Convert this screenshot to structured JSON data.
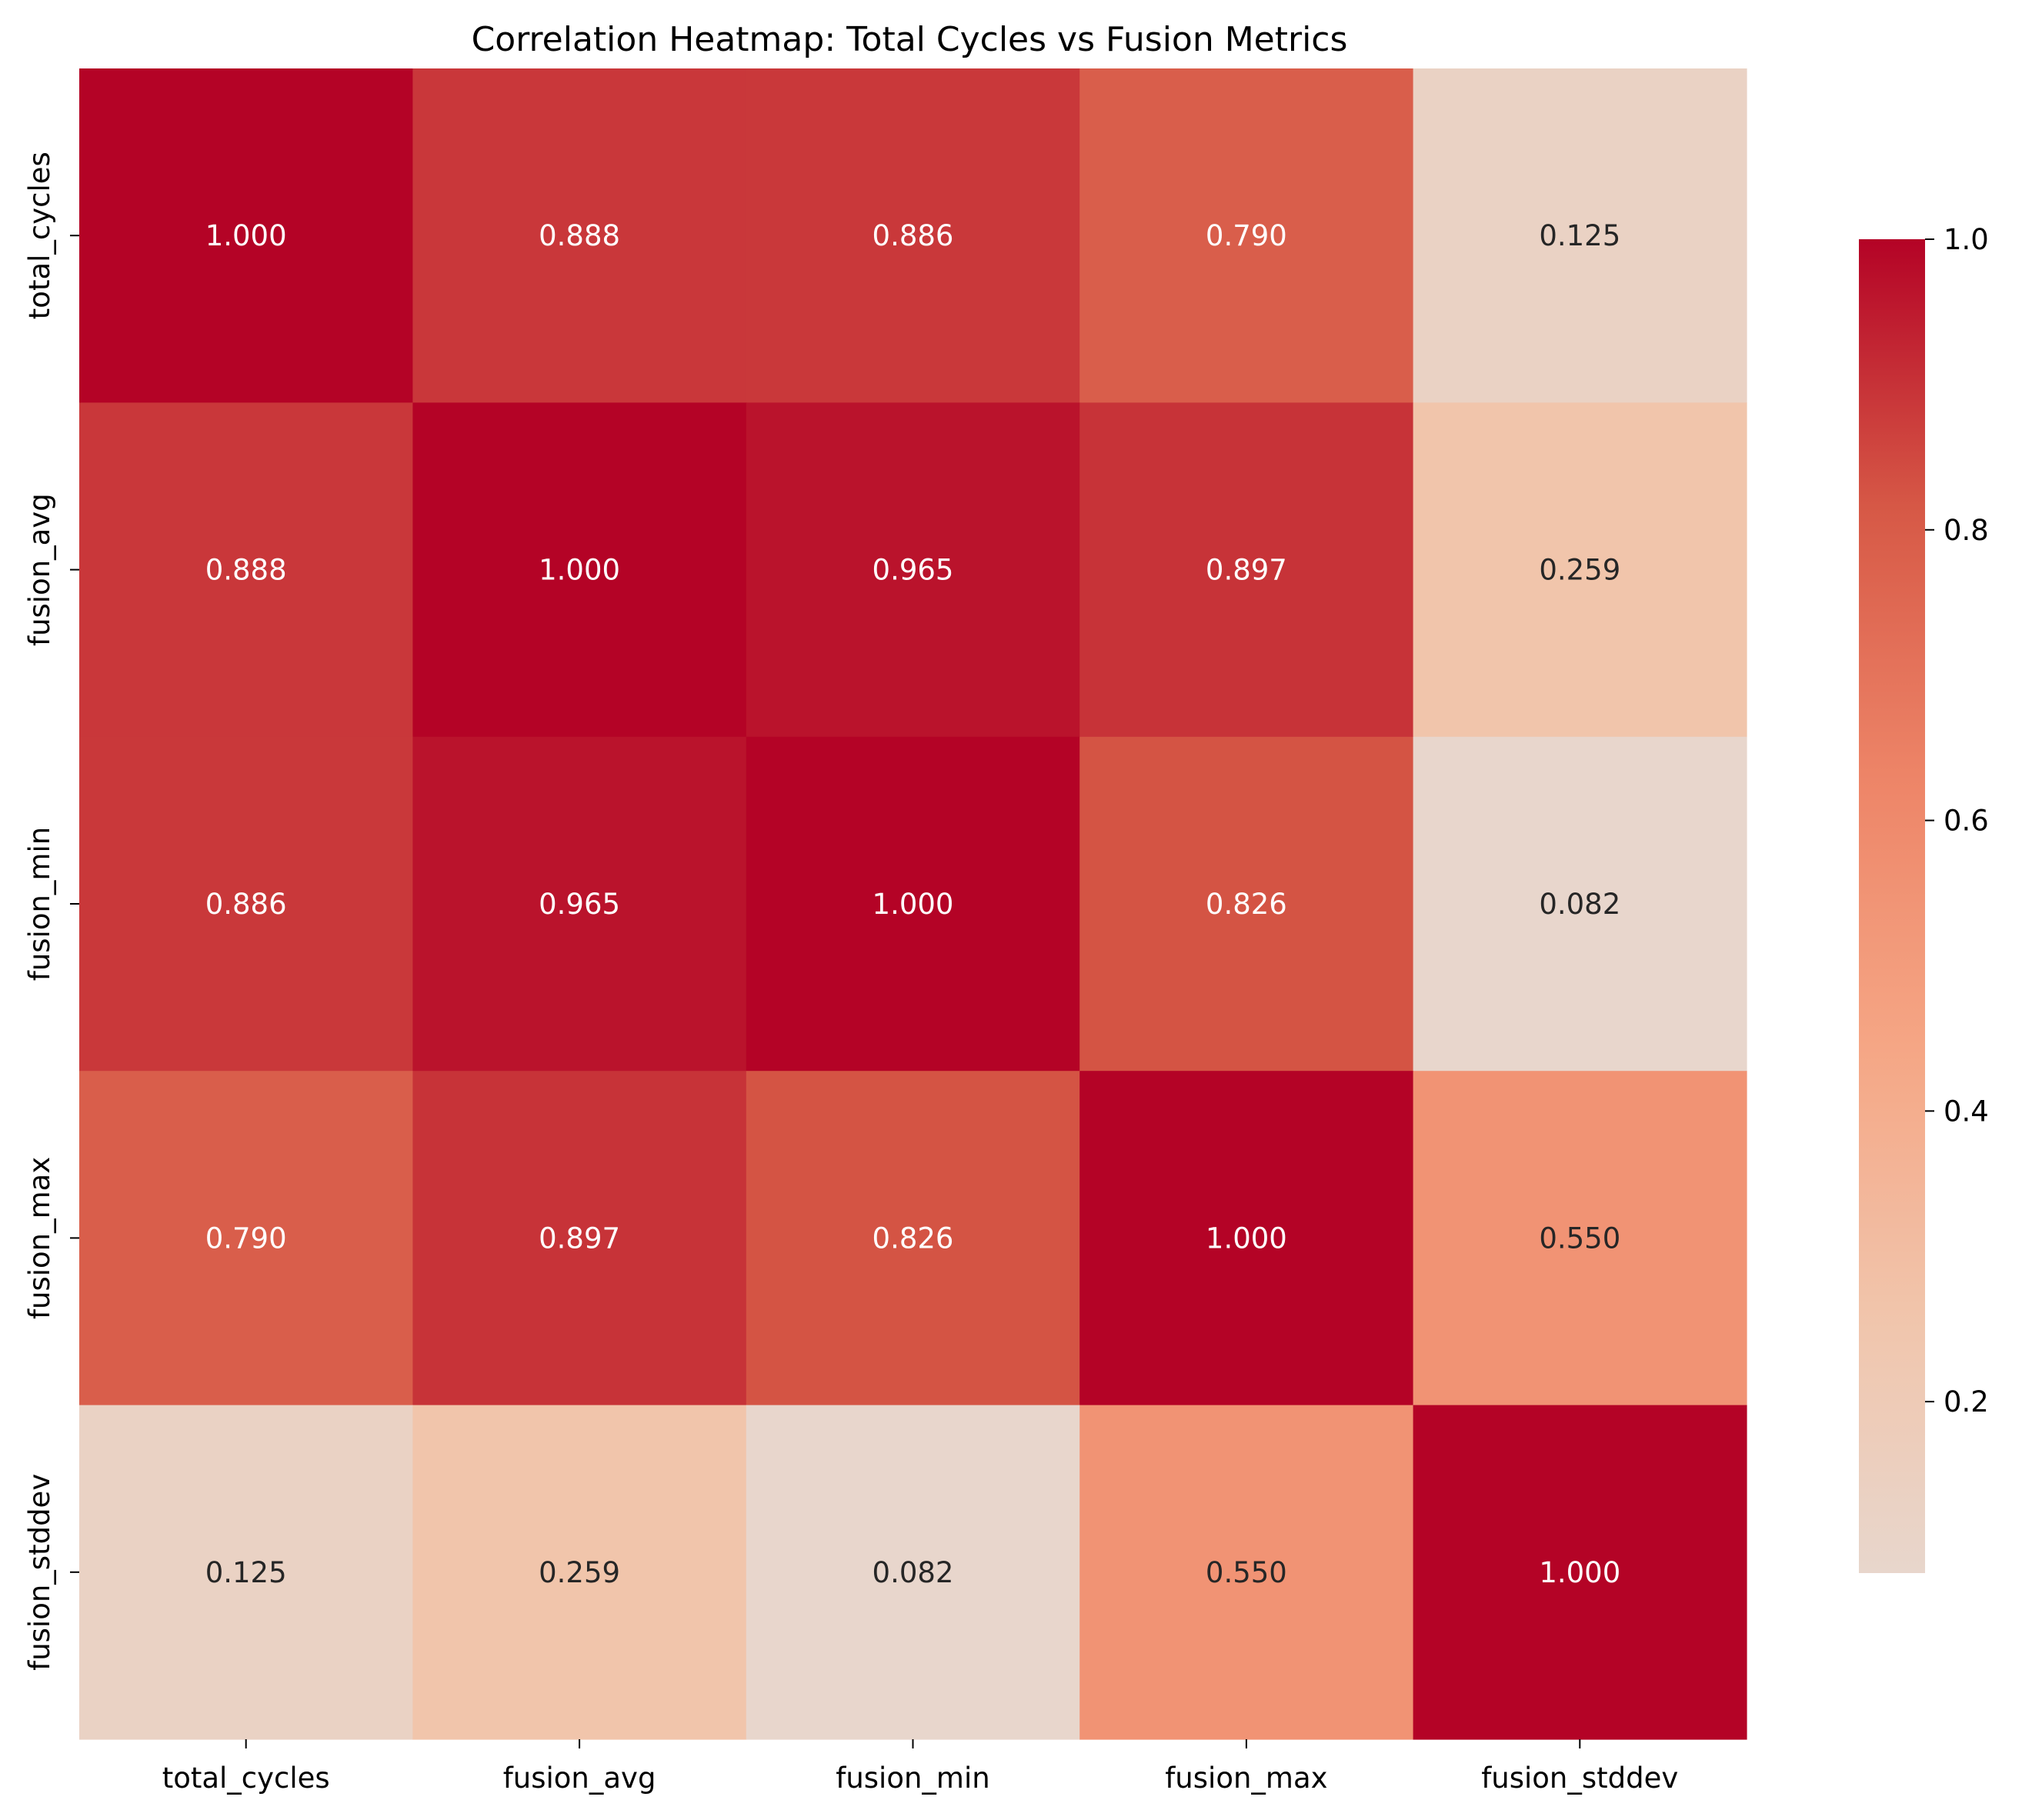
{
  "chart_data": {
    "type": "heatmap",
    "title": "Correlation Heatmap: Total Cycles vs Fusion Metrics",
    "x_labels": [
      "total_cycles",
      "fusion_avg",
      "fusion_min",
      "fusion_max",
      "fusion_stddev"
    ],
    "y_labels": [
      "total_cycles",
      "fusion_avg",
      "fusion_min",
      "fusion_max",
      "fusion_stddev"
    ],
    "values": [
      [
        1.0,
        0.888,
        0.886,
        0.79,
        0.125
      ],
      [
        0.888,
        1.0,
        0.965,
        0.897,
        0.259
      ],
      [
        0.886,
        0.965,
        1.0,
        0.826,
        0.082
      ],
      [
        0.79,
        0.897,
        0.826,
        1.0,
        0.55
      ],
      [
        0.125,
        0.259,
        0.082,
        0.55,
        1.0
      ]
    ],
    "value_format": "0.000",
    "colormap": "coolwarm",
    "colorbar": {
      "range": [
        0.082,
        1.0
      ],
      "ticks": [
        "0.2",
        "0.4",
        "0.6",
        "0.8",
        "1.0"
      ],
      "tick_values": [
        0.2,
        0.4,
        0.6,
        0.8,
        1.0
      ],
      "placement": "right"
    },
    "grid": false
  }
}
